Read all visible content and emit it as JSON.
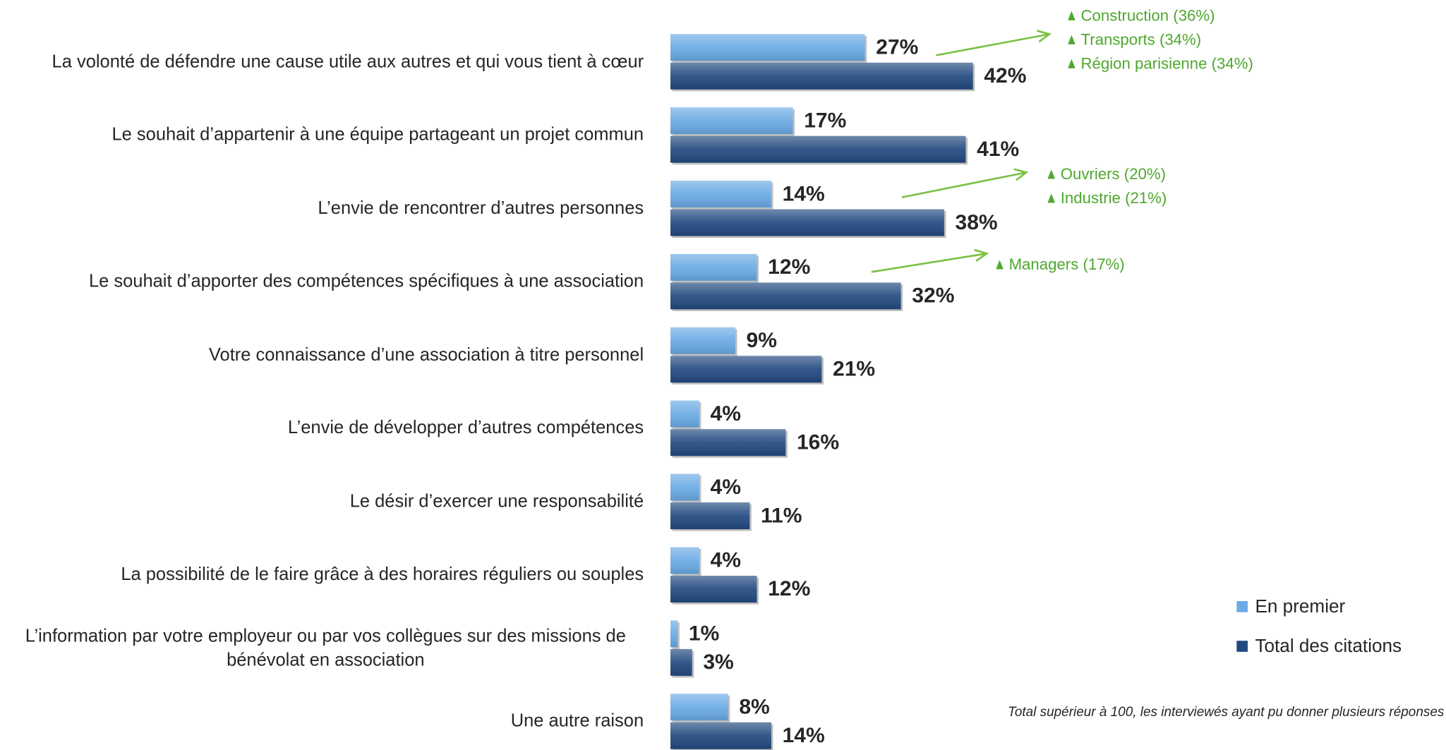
{
  "chart_data": {
    "type": "bar",
    "orientation": "horizontal",
    "categories": [
      "La volonté de défendre une cause utile aux autres et qui vous tient à cœur",
      "Le souhait d’appartenir à une équipe partageant un projet commun",
      "L’envie de rencontrer d’autres personnes",
      "Le souhait d’apporter des compétences spécifiques à une association",
      "Votre connaissance d’une association à titre personnel",
      "L’envie de développer d’autres compétences",
      "Le désir d’exercer une responsabilité",
      "La possibilité de le faire grâce à des horaires réguliers ou souples",
      "L’information par votre employeur ou par vos collègues sur des missions de bénévolat en association",
      "Une autre raison"
    ],
    "series": [
      {
        "name": "En premier",
        "color": "#6aaae4",
        "values": [
          27,
          17,
          14,
          12,
          9,
          4,
          4,
          4,
          1,
          8
        ],
        "value_labels": [
          "27%",
          "17%",
          "14%",
          "12%",
          "9%",
          "4%",
          "4%",
          "4%",
          "1%",
          "8%"
        ]
      },
      {
        "name": "Total des citations",
        "color": "#21497f",
        "values": [
          42,
          41,
          38,
          32,
          21,
          16,
          11,
          12,
          3,
          14
        ],
        "value_labels": [
          "42%",
          "41%",
          "38%",
          "32%",
          "21%",
          "16%",
          "11%",
          "12%",
          "3%",
          "14%"
        ]
      }
    ],
    "annotations": [
      [
        "Construction (36%)",
        "Transports (34%)",
        "Région parisienne (34%)"
      ],
      [
        "Ouvriers (20%)",
        "Industrie (21%)"
      ],
      [
        "Managers (17%)"
      ]
    ],
    "note": "Total supérieur à 100, les interviewés ayant pu donner plusieurs réponses"
  }
}
